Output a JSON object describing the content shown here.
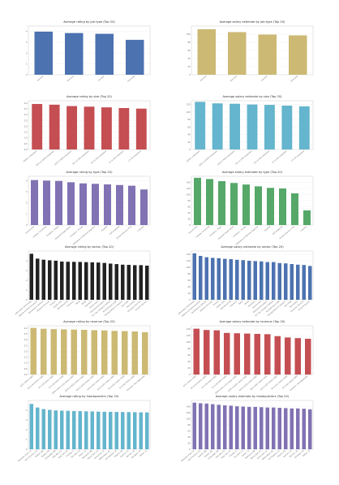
{
  "chart_data": [
    {
      "type": "bar",
      "title": "Average rating by job type (Top 20)",
      "categories": [
        "Full-time",
        "Part-time",
        "Contract",
        "Internship"
      ],
      "values": [
        3.98,
        3.85,
        3.78,
        3.22
      ],
      "ylim": [
        0,
        4.5
      ],
      "yticks": [
        "0",
        "1",
        "2",
        "3",
        "4"
      ],
      "color": "#4c72b0"
    },
    {
      "type": "bar",
      "title": "Average salary estimate by job type (Top 20)",
      "categories": [
        "Full-time",
        "Part-time",
        "Contract",
        "Internship"
      ],
      "values": [
        112,
        105,
        99,
        97
      ],
      "ylim": [
        0,
        120
      ],
      "yticks": [
        "0",
        "20",
        "40",
        "60",
        "80",
        "100"
      ],
      "color": "#ccb974"
    },
    {
      "type": "bar",
      "title": "Average rating by size (Top 20)",
      "categories": [
        "10000+ employees",
        "5001 to 10000 employees",
        "1001 to 5000 employees",
        "501 to 1000 employees",
        "201 to 500 employees",
        "51 to 200 employees",
        "1 to 50 employees"
      ],
      "values": [
        3.92,
        3.86,
        3.74,
        3.69,
        3.63,
        3.57,
        3.52
      ],
      "ylim": [
        0,
        4.2
      ],
      "yticks": [
        "0.0",
        "0.5",
        "1.0",
        "1.5",
        "2.0",
        "2.5",
        "3.0",
        "3.5",
        "4.0"
      ],
      "color": "#c44e52"
    },
    {
      "type": "bar",
      "title": "Average salary estimate by size (Top 20)",
      "categories": [
        "10000+ employees",
        "5001 to 10000 employees",
        "1001 to 5000 employees",
        "501 to 1000 employees",
        "201 to 500 employees",
        "51 to 200 employees",
        "1 to 50 employees"
      ],
      "values": [
        127,
        123,
        122,
        120,
        119,
        117,
        115
      ],
      "ylim": [
        0,
        130
      ],
      "yticks": [
        "0",
        "20",
        "40",
        "60",
        "80",
        "100",
        "120"
      ],
      "color": "#64b5cd"
    },
    {
      "type": "bar",
      "title": "Average rating by type (Top 20)",
      "categories": [
        "Government",
        "College / University",
        "Company - Public",
        "Nonprofit Organization",
        "Company - Private",
        "Subsidiary or Business Segment",
        "Hospital",
        "Self-employed",
        "Private Practice / Firm",
        "Contract"
      ],
      "values": [
        4.06,
        4.01,
        3.98,
        3.86,
        3.76,
        3.72,
        3.67,
        3.61,
        3.55,
        3.21
      ],
      "ylim": [
        0,
        4.4
      ],
      "yticks": [
        "0",
        "1",
        "2",
        "3",
        "4"
      ],
      "color": "#8172b3"
    },
    {
      "type": "bar",
      "title": "Average salary estimate by type (Top 20)",
      "categories": [
        "Government",
        "College / University",
        "Company - Public",
        "Nonprofit Organization",
        "Company - Private",
        "Subsidiary or Business Segment",
        "Hospital",
        "Self-employed",
        "Private Practice / Firm",
        "Contract"
      ],
      "values": [
        155,
        151,
        144,
        138,
        133,
        127,
        122,
        120,
        104,
        48
      ],
      "ylim": [
        0,
        160
      ],
      "yticks": [
        "0",
        "20",
        "40",
        "60",
        "80",
        "100",
        "120",
        "140"
      ],
      "color": "#55a868"
    },
    {
      "type": "bar",
      "title": "Average rating by sector (Top 20)",
      "categories": [
        "Information Technology",
        "Biotech & Pharmaceuticals",
        "Aerospace & Defense",
        "Business Services",
        "Finance",
        "Health Care",
        "Manufacturing",
        "Insurance",
        "Retail",
        "Media",
        "Education",
        "Government",
        "Telecommunications",
        "Oil, Gas, Energy & Utilities",
        "Accounting & Legal",
        "Transportation & Logistics",
        "Non-Profit",
        "Real Estate",
        "Consumer Services",
        "Travel & Tourism"
      ],
      "values": [
        4.72,
        4.22,
        4.11,
        4.05,
        4.01,
        3.92,
        3.9,
        3.89,
        3.88,
        3.86,
        3.84,
        3.82,
        3.78,
        3.71,
        3.66,
        3.6,
        3.58,
        3.55,
        3.55,
        3.5
      ],
      "ylim": [
        0,
        5
      ],
      "yticks": [
        "0",
        "1",
        "2",
        "3",
        "4"
      ],
      "color": "#222222"
    },
    {
      "type": "bar",
      "title": "Average salary estimate by sector (Top 20)",
      "categories": [
        "Information Technology",
        "Biotech & Pharmaceuticals",
        "Aerospace & Defense",
        "Business Services",
        "Finance",
        "Health Care",
        "Manufacturing",
        "Insurance",
        "Retail",
        "Media",
        "Education",
        "Government",
        "Telecommunications",
        "Oil, Gas, Energy & Utilities",
        "Accounting & Legal",
        "Transportation & Logistics",
        "Non-Profit",
        "Real Estate",
        "Consumer Services",
        "Travel & Tourism"
      ],
      "values": [
        143,
        135,
        131,
        129,
        128,
        126,
        125,
        123,
        122,
        120,
        119,
        118,
        116,
        116,
        113,
        112,
        110,
        108,
        107,
        104
      ],
      "ylim": [
        0,
        150
      ],
      "yticks": [
        "0",
        "20",
        "40",
        "60",
        "80",
        "100",
        "120",
        "140"
      ],
      "color": "#4c72b0"
    },
    {
      "type": "bar",
      "title": "Average rating by revenue (Top 20)",
      "categories": [
        "$10+ billion (USD)",
        "$5 to $10 billion (USD)",
        "$2 to $5 billion (USD)",
        "$1 to $2 billion (USD)",
        "$500 million to $1 billion (USD)",
        "$100 to $500 million (USD)",
        "$50 to $100 million (USD)",
        "$25 to $50 million (USD)",
        "$10 to $25 million (USD)",
        "$5 to $10 million (USD)",
        "$1 to $5 million (USD)",
        "Unknown / Non-Applicable"
      ],
      "values": [
        4.02,
        3.94,
        3.91,
        3.89,
        3.87,
        3.85,
        3.82,
        3.8,
        3.76,
        3.74,
        3.71,
        3.65
      ],
      "ylim": [
        0,
        4.2
      ],
      "yticks": [
        "0.0",
        "0.5",
        "1.0",
        "1.5",
        "2.0",
        "2.5",
        "3.0",
        "3.5",
        "4.0"
      ],
      "color": "#ccb974"
    },
    {
      "type": "bar",
      "title": "Average salary estimate by revenue (Top 20)",
      "categories": [
        "$10+ billion (USD)",
        "$5 to $10 billion (USD)",
        "$2 to $5 billion (USD)",
        "$1 to $2 billion (USD)",
        "$500 million to $1 billion (USD)",
        "$100 to $500 million (USD)",
        "$50 to $100 million (USD)",
        "$25 to $50 million (USD)",
        "$10 to $25 million (USD)",
        "$5 to $10 million (USD)",
        "$1 to $5 million (USD)",
        "Unknown / Non-Applicable"
      ],
      "values": [
        141,
        137,
        136,
        128,
        127,
        126,
        125,
        124,
        118,
        114,
        112,
        110
      ],
      "ylim": [
        0,
        150
      ],
      "yticks": [
        "0",
        "20",
        "40",
        "60",
        "80",
        "100",
        "120",
        "140"
      ],
      "color": "#c44e52"
    },
    {
      "type": "bar",
      "title": "Average rating by headquarters (Top 20)",
      "categories": [
        "Mountain View, CA",
        "San Francisco, CA",
        "Seattle, WA",
        "Boston, MA",
        "Cambridge, MA",
        "Palo Alto, CA",
        "New York, NY",
        "Chicago, IL",
        "San Jose, CA",
        "Austin, TX",
        "Redmond, WA",
        "Menlo Park, CA",
        "Sunnyvale, CA",
        "Washington, DC",
        "Los Angeles, CA",
        "Atlanta, GA",
        "Denver, CO",
        "McLean, VA",
        "Arlington, VA",
        "Dallas, TX"
      ],
      "values": [
        4.65,
        4.28,
        4.12,
        4.04,
        3.98,
        3.96,
        3.94,
        3.92,
        3.91,
        3.89,
        3.88,
        3.86,
        3.85,
        3.84,
        3.83,
        3.82,
        3.81,
        3.8,
        3.79,
        3.78
      ],
      "ylim": [
        0,
        5
      ],
      "yticks": [
        "0",
        "1",
        "2",
        "3",
        "4"
      ],
      "color": "#64b5cd"
    },
    {
      "type": "bar",
      "title": "Average salary estimate by headquarters (Top 20)",
      "categories": [
        "Mountain View, CA",
        "San Francisco, CA",
        "Seattle, WA",
        "Boston, MA",
        "Cambridge, MA",
        "Palo Alto, CA",
        "New York, NY",
        "Chicago, IL",
        "San Jose, CA",
        "Austin, TX",
        "Redmond, WA",
        "Menlo Park, CA",
        "Sunnyvale, CA",
        "Washington, DC",
        "Los Angeles, CA",
        "Atlanta, GA",
        "Denver, CO",
        "McLean, VA",
        "Arlington, VA",
        "Dallas, TX"
      ],
      "values": [
        153,
        151,
        150,
        148,
        146,
        144,
        143,
        141,
        140,
        139,
        139,
        138,
        137,
        137,
        136,
        135,
        134,
        134,
        133,
        131
      ],
      "ylim": [
        0,
        160
      ],
      "yticks": [
        "0",
        "20",
        "40",
        "60",
        "80",
        "100",
        "120",
        "140"
      ],
      "color": "#8172b3"
    }
  ]
}
